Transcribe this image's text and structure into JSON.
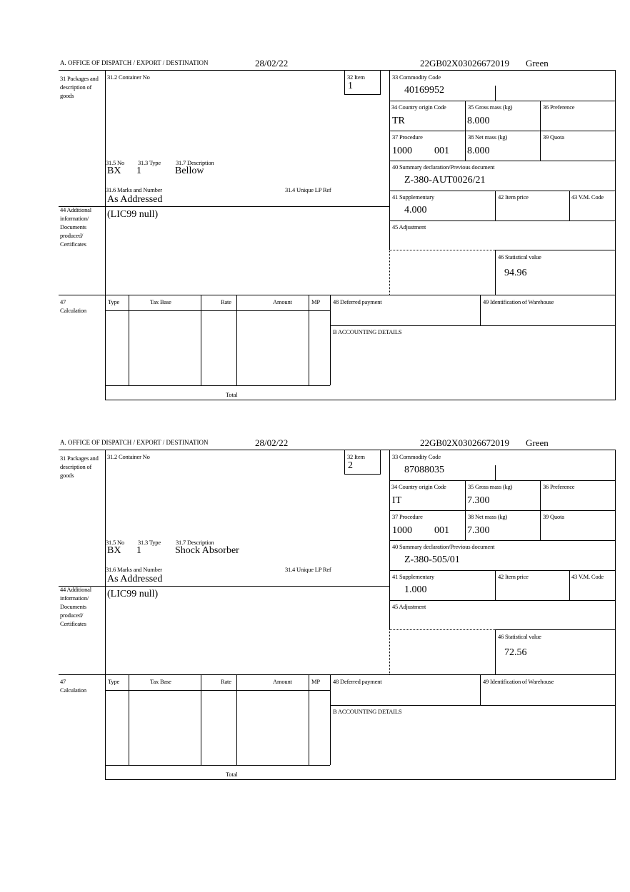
{
  "labels": {
    "office": "A. OFFICE OF DISPATCH / EXPORT / DESTINATION",
    "packages": "31 Packages and description of goods",
    "container_no": "31.2 Container No",
    "item": "32 Item",
    "no": "31.5 No",
    "type": "31.3 Type",
    "description": "31.7 Description",
    "marks": "31.6 Marks and Number",
    "unique_lp_ref": "31.4 Unique LP Ref",
    "additional_info": "44 Additional information/ Documents produced/ Certificates",
    "commodity_code": "33 Commodity Code",
    "country_origin": "34 Country origin Code",
    "gross_mass": "35 Gross mass (kg)",
    "preference": "36 Preference",
    "procedure": "37 Procedure",
    "net_mass": "38 Net mass (kg)",
    "quota": "39 Quota",
    "summary_declaration": "40 Summary declaration/Previous document",
    "supplementary": "41 Supplementary",
    "item_price": "42 Item price",
    "vm_code": "43 V.M. Code",
    "adjustment": "45 Adjustment",
    "statistical_value": "46 Statistical value",
    "calculation_no": "47",
    "calculation": "Calculation",
    "col_type": "Type",
    "col_tax_base": "Tax Base",
    "col_rate": "Rate",
    "col_amount": "Amount",
    "col_mp": "MP",
    "deferred_payment": "48 Deferred payment",
    "warehouse": "49 Identification of Warehouse",
    "accounting": "B ACCOUNTING DETAILS",
    "total": "Total"
  },
  "forms": [
    {
      "date": "28/02/22",
      "reference": "22GB02X03026672019",
      "route": "Green",
      "item": "1",
      "no": "BX",
      "type": "1",
      "description": "Bellow",
      "marks": "As Addressed",
      "additional_info": "(LIC99 null)",
      "commodity_code": "40169952",
      "country_origin": "TR",
      "gross_mass": "8.000",
      "procedure": "1000",
      "procedure_code": "001",
      "net_mass": "8.000",
      "summary_declaration": "Z-380-AUT0026/21",
      "supplementary": "4.000",
      "statistical_value": "94.96"
    },
    {
      "date": "28/02/22",
      "reference": "22GB02X03026672019",
      "route": "Green",
      "item": "2",
      "no": "BX",
      "type": "1",
      "description": "Shock Absorber",
      "marks": "As Addressed",
      "additional_info": "(LIC99 null)",
      "commodity_code": "87088035",
      "country_origin": "IT",
      "gross_mass": "7.300",
      "procedure": "1000",
      "procedure_code": "001",
      "net_mass": "7.300",
      "summary_declaration": "Z-380-505/01",
      "supplementary": "1.000",
      "statistical_value": "72.56"
    }
  ]
}
